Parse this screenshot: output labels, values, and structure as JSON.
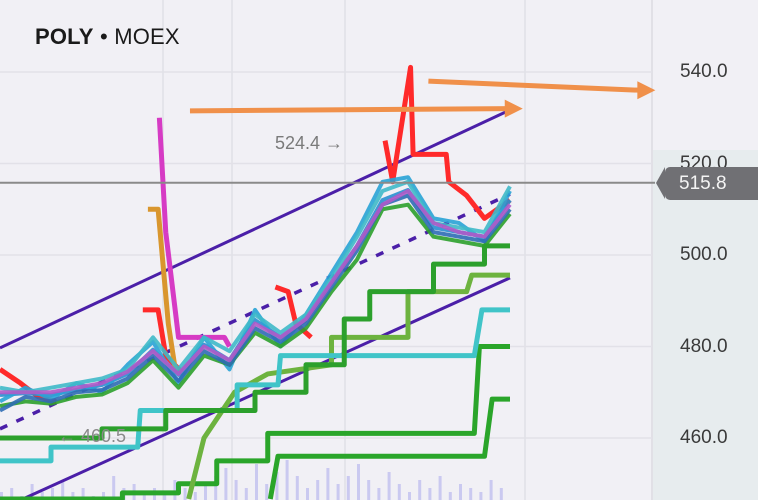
{
  "header": {
    "symbol": "POLY",
    "separator": "•",
    "exchange": "MOEX"
  },
  "price_axis": {
    "labels": [
      "540.0",
      "520.0",
      "500.0",
      "480.0",
      "460.0"
    ]
  },
  "current_price": "515.8",
  "annotations": {
    "high": "524.4 →",
    "low": "← 460.5"
  },
  "chart_data": {
    "type": "line",
    "title": "",
    "xlabel": "",
    "ylabel": "",
    "ylim": [
      440,
      546
    ],
    "y_ticks": [
      460,
      480,
      500,
      520,
      540
    ],
    "grid": true,
    "current_price": 515.8,
    "colors": {
      "background": "#f1f0f5",
      "channel": "#4b1fa8",
      "arrow": "#f0904a",
      "current_line": "#8a8a8a",
      "volume": "#b9b8ee"
    },
    "price_series": [
      {
        "color": "#2a8fd0",
        "values": [
          469.4,
          469.8,
          469.4,
          470.5,
          471.6,
          474,
          479.3,
          473.8,
          480.4,
          477,
          485.8,
          482,
          485.8,
          494,
          502,
          512,
          514.2,
          506,
          505,
          504,
          512
        ]
      },
      {
        "color": "#29a3d6",
        "values": [
          468,
          471,
          468.5,
          472,
          470,
          476,
          481,
          472,
          482,
          475,
          488,
          480,
          487,
          496,
          505,
          516,
          517,
          508,
          507,
          503,
          514
        ]
      },
      {
        "color": "#2ca02c",
        "values": [
          467,
          468,
          467.5,
          469,
          469.5,
          472,
          477,
          471,
          478,
          476,
          483,
          480,
          484,
          492,
          499,
          510,
          511,
          504,
          503,
          502,
          509
        ]
      },
      {
        "color": "#3fb9c9",
        "values": [
          471,
          470,
          471,
          472,
          473,
          475,
          482,
          475,
          482,
          479,
          487,
          483,
          487,
          495,
          504,
          514,
          516,
          507,
          506,
          505,
          515
        ]
      },
      {
        "color": "#2f6db5",
        "values": [
          466,
          469,
          468,
          470,
          470.5,
          473,
          478,
          472.5,
          479,
          476,
          484,
          481,
          485,
          493,
          501,
          511,
          513,
          505,
          504,
          503,
          510
        ]
      },
      {
        "color": "#b05ac8",
        "values": [
          470,
          470,
          470,
          471,
          472,
          474.5,
          479,
          474,
          480,
          477,
          485,
          482,
          486,
          494,
          502,
          511,
          514,
          507,
          505,
          504,
          511
        ]
      }
    ],
    "step_series": [
      {
        "color": "#ff2a2a",
        "points": [
          [
            0,
            475
          ],
          [
            0.8,
            472
          ],
          [
            1.5,
            469
          ],
          [
            2.2,
            468
          ]
        ]
      },
      {
        "color": "#ff2a2a",
        "points": [
          [
            5.6,
            488
          ],
          [
            6.2,
            488
          ],
          [
            6.5,
            478
          ],
          [
            7.2,
            474
          ]
        ]
      },
      {
        "color": "#ff2a2a",
        "points": [
          [
            10.8,
            493
          ],
          [
            11.3,
            492
          ],
          [
            11.6,
            485
          ],
          [
            12.2,
            482
          ]
        ]
      },
      {
        "color": "#ff2a2a",
        "points": [
          [
            15.1,
            525
          ],
          [
            15.4,
            516
          ],
          [
            16.1,
            541
          ],
          [
            16.2,
            522
          ],
          [
            17.5,
            522
          ],
          [
            17.6,
            516
          ],
          [
            18.3,
            513
          ],
          [
            19,
            508
          ],
          [
            20,
            512
          ]
        ]
      },
      {
        "color": "#d63bc4",
        "points": [
          [
            6.25,
            530
          ],
          [
            6.5,
            505
          ],
          [
            7,
            482
          ],
          [
            8.8,
            482
          ],
          [
            9,
            480
          ]
        ]
      },
      {
        "color": "#d9962e",
        "points": [
          [
            5.8,
            510
          ],
          [
            6.2,
            510
          ],
          [
            6.6,
            485
          ],
          [
            6.9,
            474
          ]
        ]
      },
      {
        "color": "#2aa52a",
        "points": [
          [
            0,
            446
          ],
          [
            4.8,
            446
          ],
          [
            4.8,
            448
          ],
          [
            7,
            448
          ],
          [
            7,
            450
          ],
          [
            8.5,
            450
          ],
          [
            8.5,
            455
          ],
          [
            10.5,
            455
          ],
          [
            10.5,
            461
          ],
          [
            18.6,
            461
          ],
          [
            18.8,
            480
          ],
          [
            20,
            480
          ]
        ]
      },
      {
        "color": "#2aa52a",
        "points": [
          [
            10.6,
            440
          ],
          [
            10.9,
            456
          ],
          [
            19,
            456
          ],
          [
            19.3,
            468.5
          ],
          [
            20,
            468.5
          ]
        ]
      },
      {
        "color": "#6db33f",
        "points": [
          [
            7.4,
            444
          ],
          [
            8,
            460
          ],
          [
            9.2,
            470
          ],
          [
            10.5,
            474
          ],
          [
            13,
            476
          ],
          [
            13,
            482
          ],
          [
            16,
            482
          ],
          [
            16,
            492
          ],
          [
            18.3,
            492
          ],
          [
            18.5,
            495.6
          ],
          [
            20,
            495.6
          ]
        ]
      },
      {
        "color": "#40c4c8",
        "points": [
          [
            0,
            455
          ],
          [
            2,
            455
          ],
          [
            2,
            458
          ],
          [
            5.4,
            458
          ],
          [
            5.5,
            466
          ],
          [
            9.3,
            466
          ],
          [
            9.3,
            471.6
          ],
          [
            10.9,
            471.6
          ],
          [
            11,
            478
          ],
          [
            18.6,
            478
          ],
          [
            18.9,
            488
          ],
          [
            20,
            488
          ]
        ]
      },
      {
        "color": "#2ca02c",
        "points": [
          [
            0,
            460
          ],
          [
            4,
            460
          ],
          [
            4,
            462
          ],
          [
            6.5,
            462
          ],
          [
            6.5,
            466
          ],
          [
            10,
            466
          ],
          [
            10,
            470
          ],
          [
            12,
            470
          ],
          [
            12,
            476
          ],
          [
            13.5,
            476
          ],
          [
            13.5,
            486
          ],
          [
            14.5,
            486
          ],
          [
            14.5,
            492
          ],
          [
            17,
            492
          ],
          [
            17,
            498
          ],
          [
            19,
            498
          ],
          [
            19,
            502
          ],
          [
            20,
            502
          ]
        ]
      }
    ],
    "channel": {
      "upper": [
        479.7,
        531.7
      ],
      "lower": [
        444.4,
        495.0
      ],
      "mid": [
        462,
        513.3
      ]
    },
    "arrows": [
      {
        "from": [
          7.45,
          531.5
        ],
        "to": [
          20.5,
          532
        ]
      },
      {
        "from": [
          16.8,
          538
        ],
        "to": [
          25.7,
          536
        ]
      }
    ],
    "volume": [
      2,
      3,
      1,
      4,
      2,
      3,
      5,
      2,
      3,
      1,
      2,
      6,
      3,
      4,
      2,
      3,
      2,
      5,
      3,
      2,
      4,
      6,
      8,
      5,
      3,
      9,
      4,
      7,
      10,
      6,
      3,
      5,
      8,
      4,
      6,
      9,
      5,
      3,
      7,
      4,
      2,
      5,
      3,
      6,
      2,
      4,
      3,
      2,
      5,
      3
    ]
  }
}
